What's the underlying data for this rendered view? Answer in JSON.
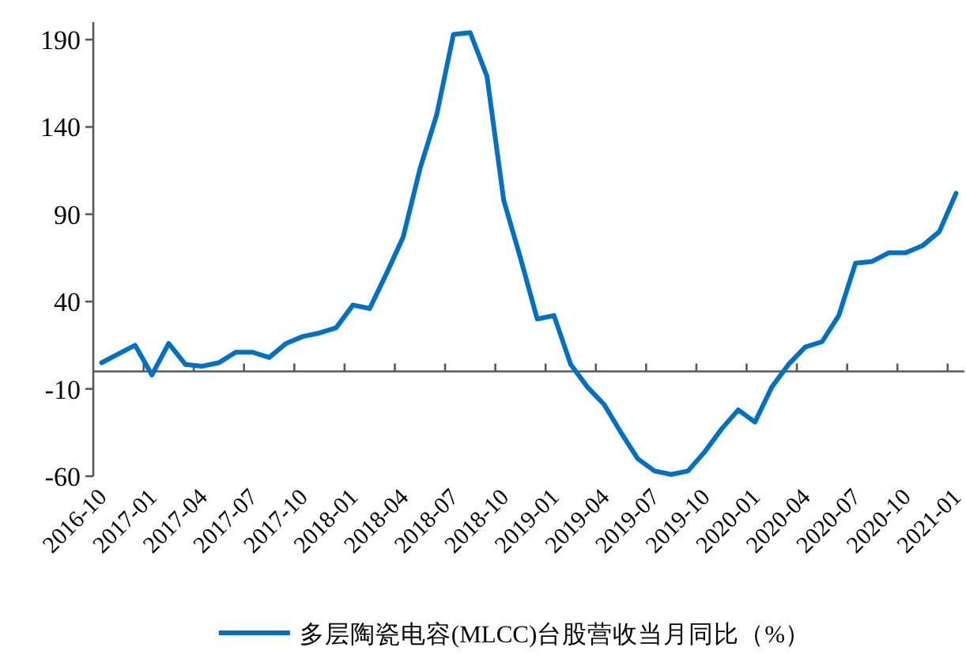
{
  "chart_data": {
    "type": "line",
    "categories": [
      "2016-10",
      null,
      null,
      "2017-01",
      null,
      null,
      "2017-04",
      null,
      null,
      "2017-07",
      null,
      null,
      "2017-10",
      null,
      null,
      "2018-01",
      null,
      null,
      "2018-04",
      null,
      null,
      "2018-07",
      null,
      null,
      "2018-10",
      null,
      null,
      "2019-01",
      null,
      null,
      "2019-04",
      null,
      null,
      "2019-07",
      null,
      null,
      "2019-10",
      null,
      null,
      "2020-01",
      null,
      null,
      "2020-04",
      null,
      null,
      "2020-07",
      null,
      null,
      "2020-10",
      null,
      null,
      "2021-01"
    ],
    "series": [
      {
        "name": "多层陶瓷电容(MLCC)台股营收当月同比（%）",
        "color": "#0070c0",
        "values": [
          5,
          10,
          15,
          -2,
          16,
          4,
          3,
          5,
          11,
          11,
          8,
          16,
          20,
          22,
          25,
          38,
          36,
          56,
          77,
          116,
          147,
          193,
          194,
          169,
          98,
          65,
          30,
          32,
          4,
          -9,
          -19,
          -35,
          -50,
          -57,
          -59,
          -57,
          -46,
          -33,
          -22,
          -29,
          -9,
          4,
          14,
          17,
          32,
          62,
          63,
          68,
          68,
          72,
          80,
          102
        ]
      }
    ],
    "ylim": [
      -60,
      200
    ],
    "yticks": [
      -60,
      -10,
      40,
      90,
      140,
      190
    ],
    "legend": "bottom"
  }
}
